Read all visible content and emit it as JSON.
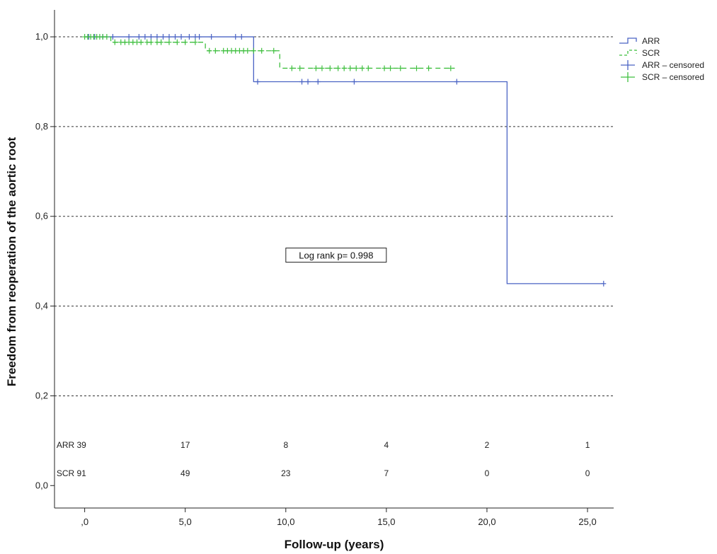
{
  "chart_data": {
    "type": "line",
    "subtype": "kaplan-meier",
    "title": "",
    "xlabel": "Follow-up (years)",
    "ylabel": "Freedom from reoperation of the aortic root",
    "xlim": [
      -1.5,
      26.3
    ],
    "ylim": [
      -0.05,
      1.06
    ],
    "xticks": [
      0,
      5,
      10,
      15,
      20,
      25
    ],
    "xtick_labels": [
      ",0",
      "5,0",
      "10,0",
      "15,0",
      "20,0",
      "25,0"
    ],
    "yticks": [
      0,
      0.2,
      0.4,
      0.6,
      0.8,
      1.0
    ],
    "ytick_labels": [
      "0,0",
      "0,2",
      "0,4",
      "0,6",
      "0,8",
      "1,0"
    ],
    "gridlines_y": [
      0.2,
      0.4,
      0.6,
      0.8,
      1.0
    ],
    "annotation": {
      "text": "Log  rank p= 0.998",
      "x": 12.5,
      "y": 0.512
    },
    "legend": {
      "position": "top-right",
      "entries": [
        {
          "label": "ARR",
          "kind": "step-solid",
          "color": "#4a63c4"
        },
        {
          "label": "SCR",
          "kind": "step-dashed",
          "color": "#3fbf3f"
        },
        {
          "label": "ARR – censored",
          "kind": "censor",
          "color": "#4a63c4"
        },
        {
          "label": "SCR – censored",
          "kind": "censor",
          "color": "#3fbf3f"
        }
      ]
    },
    "series": [
      {
        "name": "ARR",
        "color": "#4a63c4",
        "style": "solid",
        "steps": [
          [
            0,
            1.0
          ],
          [
            8.4,
            0.9
          ],
          [
            21.0,
            0.45
          ],
          [
            25.8,
            0.45
          ]
        ],
        "censored": [
          [
            0.2,
            1.0
          ],
          [
            0.5,
            1.0
          ],
          [
            0.9,
            1.0
          ],
          [
            1.4,
            1.0
          ],
          [
            2.2,
            1.0
          ],
          [
            2.7,
            1.0
          ],
          [
            3.0,
            1.0
          ],
          [
            3.3,
            1.0
          ],
          [
            3.6,
            1.0
          ],
          [
            3.9,
            1.0
          ],
          [
            4.2,
            1.0
          ],
          [
            4.5,
            1.0
          ],
          [
            4.8,
            1.0
          ],
          [
            5.2,
            1.0
          ],
          [
            5.5,
            1.0
          ],
          [
            5.7,
            1.0
          ],
          [
            6.3,
            1.0
          ],
          [
            7.5,
            1.0
          ],
          [
            7.8,
            1.0
          ],
          [
            8.6,
            0.9
          ],
          [
            10.8,
            0.9
          ],
          [
            11.1,
            0.9
          ],
          [
            11.6,
            0.9
          ],
          [
            13.4,
            0.9
          ],
          [
            18.5,
            0.9
          ],
          [
            25.8,
            0.45
          ]
        ]
      },
      {
        "name": "SCR",
        "color": "#3fbf3f",
        "style": "dashed",
        "steps": [
          [
            0,
            1.0
          ],
          [
            1.3,
            0.988
          ],
          [
            6.0,
            0.969
          ],
          [
            9.7,
            0.93
          ],
          [
            18.4,
            0.93
          ]
        ],
        "censored": [
          [
            0.0,
            1.0
          ],
          [
            0.15,
            1.0
          ],
          [
            0.3,
            1.0
          ],
          [
            0.45,
            1.0
          ],
          [
            0.6,
            1.0
          ],
          [
            0.75,
            1.0
          ],
          [
            0.9,
            1.0
          ],
          [
            1.1,
            1.0
          ],
          [
            1.5,
            0.988
          ],
          [
            1.8,
            0.988
          ],
          [
            2.0,
            0.988
          ],
          [
            2.2,
            0.988
          ],
          [
            2.4,
            0.988
          ],
          [
            2.6,
            0.988
          ],
          [
            2.8,
            0.988
          ],
          [
            3.1,
            0.988
          ],
          [
            3.3,
            0.988
          ],
          [
            3.6,
            0.988
          ],
          [
            3.8,
            0.988
          ],
          [
            4.2,
            0.988
          ],
          [
            4.6,
            0.988
          ],
          [
            5.0,
            0.988
          ],
          [
            5.5,
            0.988
          ],
          [
            6.2,
            0.969
          ],
          [
            6.5,
            0.969
          ],
          [
            6.9,
            0.969
          ],
          [
            7.1,
            0.969
          ],
          [
            7.3,
            0.969
          ],
          [
            7.5,
            0.969
          ],
          [
            7.7,
            0.969
          ],
          [
            7.9,
            0.969
          ],
          [
            8.1,
            0.969
          ],
          [
            8.4,
            0.969
          ],
          [
            8.8,
            0.969
          ],
          [
            9.4,
            0.969
          ],
          [
            10.3,
            0.93
          ],
          [
            10.7,
            0.93
          ],
          [
            11.5,
            0.93
          ],
          [
            11.8,
            0.93
          ],
          [
            12.2,
            0.93
          ],
          [
            12.6,
            0.93
          ],
          [
            12.9,
            0.93
          ],
          [
            13.2,
            0.93
          ],
          [
            13.5,
            0.93
          ],
          [
            13.8,
            0.93
          ],
          [
            14.1,
            0.93
          ],
          [
            14.9,
            0.93
          ],
          [
            15.2,
            0.93
          ],
          [
            15.7,
            0.93
          ],
          [
            16.5,
            0.93
          ],
          [
            17.1,
            0.93
          ],
          [
            18.2,
            0.93
          ]
        ]
      }
    ],
    "risk_table": {
      "rows": [
        {
          "label": "ARR 39",
          "values": [
            "17",
            "8",
            "4",
            "2",
            "1"
          ],
          "y": 0.09
        },
        {
          "label": "SCR 91",
          "values": [
            "49",
            "23",
            "7",
            "0",
            "0"
          ],
          "y": 0.027
        }
      ],
      "label_x": -1.4,
      "value_x": [
        5,
        10,
        15,
        20,
        25
      ]
    }
  }
}
